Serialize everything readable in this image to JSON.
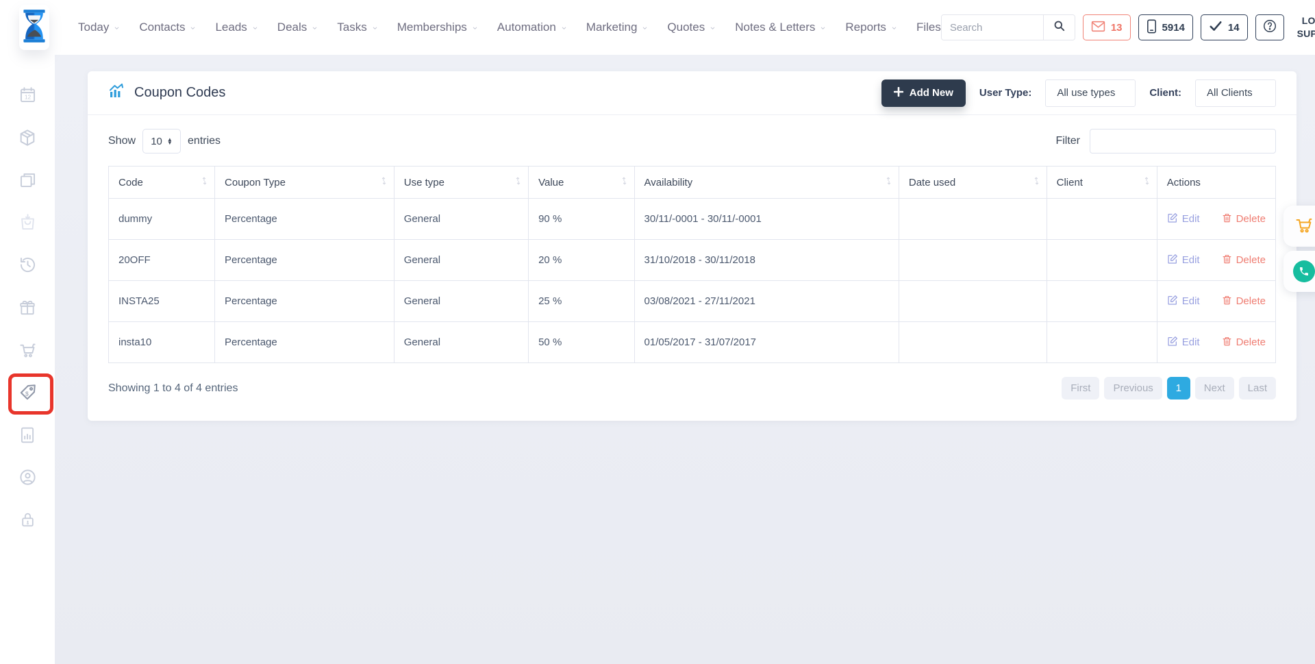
{
  "topbar": {
    "nav": [
      {
        "label": "Today",
        "caret": true
      },
      {
        "label": "Contacts",
        "caret": true
      },
      {
        "label": "Leads",
        "caret": true
      },
      {
        "label": "Deals",
        "caret": true
      },
      {
        "label": "Tasks",
        "caret": true
      },
      {
        "label": "Memberships",
        "caret": true
      },
      {
        "label": "Automation",
        "caret": true
      },
      {
        "label": "Marketing",
        "caret": true
      },
      {
        "label": "Quotes",
        "caret": true
      },
      {
        "label": "Notes & Letters",
        "caret": true
      },
      {
        "label": "Reports",
        "caret": true
      },
      {
        "label": "Files",
        "caret": false
      }
    ],
    "search_placeholder": "Search",
    "mail_count": "13",
    "phone_count": "5914",
    "check_count": "14",
    "user_line1": "LONDON",
    "user_line2": "SUPPORT"
  },
  "sidebar": {
    "items": [
      {
        "icon": "calendar-icon",
        "state": "normal"
      },
      {
        "icon": "package-icon",
        "state": "normal"
      },
      {
        "icon": "copy-icon",
        "state": "normal"
      },
      {
        "icon": "bag-download-icon",
        "state": "faded"
      },
      {
        "icon": "history-icon",
        "state": "normal"
      },
      {
        "icon": "gift-icon",
        "state": "normal"
      },
      {
        "icon": "cart-icon",
        "state": "normal"
      },
      {
        "icon": "coupon-tag-icon",
        "state": "active",
        "highlighted": true
      },
      {
        "icon": "report-icon",
        "state": "normal"
      },
      {
        "icon": "account-icon",
        "state": "normal"
      },
      {
        "icon": "lock-icon",
        "state": "normal"
      }
    ]
  },
  "page": {
    "title": "Coupon Codes",
    "add_new_label": "Add New",
    "user_type_label": "User Type:",
    "user_type_value": "All use types",
    "client_label": "Client:",
    "client_value": "All Clients"
  },
  "controls": {
    "show_label": "Show",
    "page_size": "10",
    "entries_label": "entries",
    "filter_label": "Filter",
    "filter_value": ""
  },
  "table": {
    "headers": [
      {
        "label": "Code",
        "sortable": true
      },
      {
        "label": "Coupon Type",
        "sortable": true
      },
      {
        "label": "Use type",
        "sortable": true
      },
      {
        "label": "Value",
        "sortable": true
      },
      {
        "label": "Availability",
        "sortable": true
      },
      {
        "label": "Date used",
        "sortable": true
      },
      {
        "label": "Client",
        "sortable": true
      },
      {
        "label": "Actions",
        "sortable": false
      }
    ],
    "rows": [
      {
        "code": "dummy",
        "coupon_type": "Percentage",
        "use_type": "General",
        "value": "90 %",
        "availability": "30/11/-0001 - 30/11/-0001",
        "date_used": "",
        "client": ""
      },
      {
        "code": "20OFF",
        "coupon_type": "Percentage",
        "use_type": "General",
        "value": "20 %",
        "availability": "31/10/2018 - 30/11/2018",
        "date_used": "",
        "client": ""
      },
      {
        "code": "INSTA25",
        "coupon_type": "Percentage",
        "use_type": "General",
        "value": "25 %",
        "availability": "03/08/2021 - 27/11/2021",
        "date_used": "",
        "client": ""
      },
      {
        "code": "insta10",
        "coupon_type": "Percentage",
        "use_type": "General",
        "value": "50 %",
        "availability": "01/05/2017 - 31/07/2017",
        "date_used": "",
        "client": ""
      }
    ],
    "actions": {
      "edit": "Edit",
      "delete": "Delete"
    }
  },
  "footer": {
    "summary": "Showing 1 to 4 of 4 entries",
    "pagination": [
      {
        "label": "First",
        "active": false
      },
      {
        "label": "Previous",
        "active": false
      },
      {
        "label": "1",
        "active": true
      },
      {
        "label": "Next",
        "active": false
      },
      {
        "label": "Last",
        "active": false
      }
    ]
  },
  "colors": {
    "accent_navy": "#2e3b4d",
    "active_page_blue": "#2eaae1",
    "alert_red": "#ef7466",
    "edit_link": "#98a0e0",
    "delete_link": "#ef7d72",
    "highlight_ring_red": "#e8352b",
    "floating_cart_orange": "#f5a623",
    "floating_phone_teal": "#17bd9f",
    "logo_blue": "#1d7fd6"
  }
}
